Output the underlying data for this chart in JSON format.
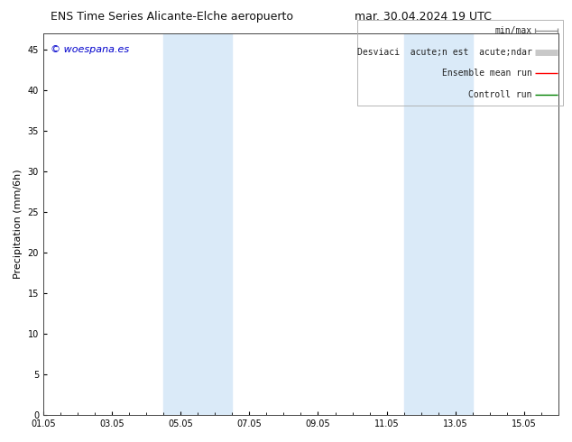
{
  "title_left": "ENS Time Series Alicante-Elche aeropuerto",
  "title_right": "mar. 30.04.2024 19 UTC",
  "ylabel": "Precipitation (mm/6h)",
  "ylim": [
    0,
    47
  ],
  "yticks": [
    0,
    5,
    10,
    15,
    20,
    25,
    30,
    35,
    40,
    45
  ],
  "background_color": "#ffffff",
  "plot_bg_color": "#ffffff",
  "band_color": "#daeaf8",
  "band1_x0": 3.5,
  "band1_x1": 5.5,
  "band2_x0": 10.5,
  "band2_x1": 12.5,
  "xlim": [
    0,
    15
  ],
  "x_tick_positions": [
    0,
    2,
    4,
    6,
    8,
    10,
    12,
    14
  ],
  "x_tick_labels": [
    "01.05",
    "03.05",
    "05.05",
    "07.05",
    "09.05",
    "11.05",
    "13.05",
    "15.05"
  ],
  "legend_labels": [
    "min/max",
    "Desviaci  acute;n est  acute;ndar",
    "Ensemble mean run",
    "Controll run"
  ],
  "legend_colors": [
    "#888888",
    "#c8c8c8",
    "#ff0000",
    "#008000"
  ],
  "legend_lws": [
    1.0,
    5.0,
    1.0,
    1.0
  ],
  "watermark": "© woespana.es",
  "watermark_color": "#0000cc",
  "title_fontsize": 9,
  "ylabel_fontsize": 8,
  "tick_fontsize": 7,
  "legend_fontsize": 7,
  "watermark_fontsize": 8
}
